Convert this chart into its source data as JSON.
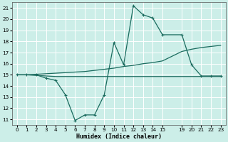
{
  "xlabel": "Humidex (Indice chaleur)",
  "bg_color": "#cceee8",
  "grid_color": "#ffffff",
  "line_color": "#1a6b5e",
  "xlim": [
    -0.5,
    23.5
  ],
  "ylim": [
    10.5,
    21.5
  ],
  "xticks": [
    0,
    1,
    2,
    3,
    4,
    5,
    6,
    7,
    8,
    9,
    10,
    11,
    12,
    13,
    14,
    15,
    19,
    20,
    21,
    22,
    23
  ],
  "yticks": [
    11,
    12,
    13,
    14,
    15,
    16,
    17,
    18,
    19,
    20,
    21
  ],
  "series1_x": [
    0,
    1,
    2,
    3,
    4,
    5,
    6,
    7,
    8,
    9,
    10,
    11,
    12,
    13,
    14,
    15,
    19,
    20,
    21,
    22,
    23
  ],
  "series1_y": [
    15.0,
    15.0,
    15.0,
    14.7,
    14.5,
    13.2,
    10.9,
    11.4,
    11.4,
    13.2,
    17.9,
    15.9,
    21.2,
    20.4,
    20.1,
    18.6,
    18.6,
    15.9,
    14.9,
    14.9,
    14.9
  ],
  "series2_x": [
    0,
    1,
    2,
    3,
    4,
    5,
    6,
    7,
    8,
    9,
    10,
    11,
    12,
    13,
    14,
    15,
    19,
    20,
    21,
    22,
    23
  ],
  "series2_y": [
    15.0,
    15.0,
    15.05,
    15.1,
    15.15,
    15.2,
    15.25,
    15.3,
    15.4,
    15.5,
    15.6,
    15.75,
    15.85,
    16.0,
    16.1,
    16.25,
    17.1,
    17.3,
    17.45,
    17.55,
    17.65
  ],
  "series3_x": [
    0,
    1,
    2,
    3,
    4,
    5,
    6,
    7,
    8,
    9,
    10,
    11,
    12,
    13,
    14,
    15,
    19,
    20,
    21,
    22,
    23
  ],
  "series3_y": [
    15.0,
    15.0,
    14.95,
    14.9,
    14.85,
    14.85,
    14.85,
    14.85,
    14.85,
    14.85,
    14.85,
    14.85,
    14.85,
    14.85,
    14.85,
    14.85,
    14.85,
    14.85,
    14.85,
    14.85,
    14.85
  ]
}
